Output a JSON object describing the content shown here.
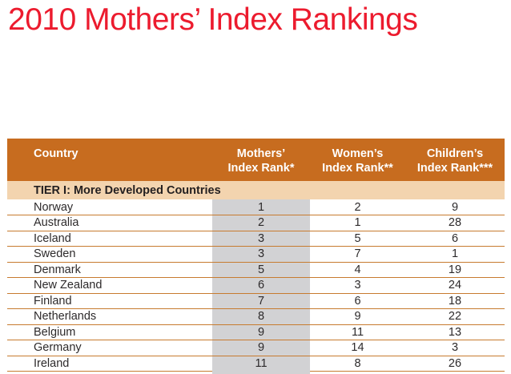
{
  "page": {
    "title": "2010 Mothers’ Index Rankings"
  },
  "table": {
    "columns": [
      {
        "label": "Country"
      },
      {
        "label": "Mothers’\nIndex Rank*"
      },
      {
        "label": "Women’s\nIndex Rank**"
      },
      {
        "label": "Children’s\nIndex Rank***"
      }
    ],
    "tier_header": "TIER I: More Developed Countries",
    "rows": [
      {
        "country": "Norway",
        "mothers_rank": "1",
        "womens_rank": "2",
        "childrens_rank": "9"
      },
      {
        "country": "Australia",
        "mothers_rank": "2",
        "womens_rank": "1",
        "childrens_rank": "28"
      },
      {
        "country": "Iceland",
        "mothers_rank": "3",
        "womens_rank": "5",
        "childrens_rank": "6"
      },
      {
        "country": "Sweden",
        "mothers_rank": "3",
        "womens_rank": "7",
        "childrens_rank": "1"
      },
      {
        "country": "Denmark",
        "mothers_rank": "5",
        "womens_rank": "4",
        "childrens_rank": "19"
      },
      {
        "country": "New Zealand",
        "mothers_rank": "6",
        "womens_rank": "3",
        "childrens_rank": "24"
      },
      {
        "country": "Finland",
        "mothers_rank": "7",
        "womens_rank": "6",
        "childrens_rank": "18"
      },
      {
        "country": "Netherlands",
        "mothers_rank": "8",
        "womens_rank": "9",
        "childrens_rank": "22"
      },
      {
        "country": "Belgium",
        "mothers_rank": "9",
        "womens_rank": "11",
        "childrens_rank": "13"
      },
      {
        "country": "Germany",
        "mothers_rank": "9",
        "womens_rank": "14",
        "childrens_rank": "3"
      },
      {
        "country": "Ireland",
        "mothers_rank": "11",
        "womens_rank": "8",
        "childrens_rank": "26"
      }
    ]
  },
  "colors": {
    "title_red": "#EC1B2E",
    "header_orange": "#C76C1F",
    "tier_peach": "#F3D4AF",
    "rank_column_gray": "#D2D2D4",
    "row_line_orange": "#C77B2F",
    "text_dark": "#2D2A2B",
    "header_text": "#FFFFFF"
  }
}
